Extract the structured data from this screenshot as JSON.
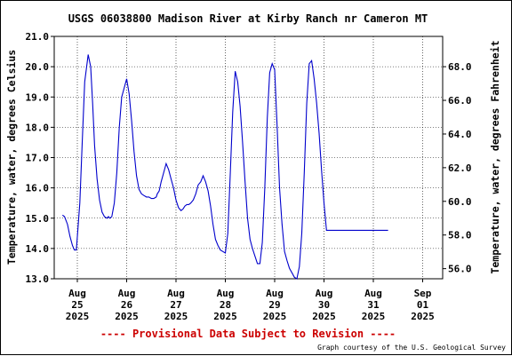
{
  "chart_data": {
    "type": "line",
    "title": "USGS 06038800 Madison River at Kirby Ranch nr Cameron MT",
    "ylabel": "Temperature, water, degrees Celsius",
    "y2label": "Temperature, water, degrees Fahrenheit",
    "ylim": [
      13.0,
      21.0
    ],
    "y2lim": [
      55.4,
      69.8
    ],
    "y_ticks": [
      "21.0",
      "20.0",
      "19.0",
      "18.0",
      "17.0",
      "16.0",
      "15.0",
      "14.0",
      "13.0"
    ],
    "y2_ticks": [
      "68.0",
      "66.0",
      "64.0",
      "62.0",
      "60.0",
      "58.0",
      "56.0"
    ],
    "x_ticks": [
      [
        "Aug",
        "25",
        "2025"
      ],
      [
        "Aug",
        "26",
        "2025"
      ],
      [
        "Aug",
        "27",
        "2025"
      ],
      [
        "Aug",
        "28",
        "2025"
      ],
      [
        "Aug",
        "29",
        "2025"
      ],
      [
        "Aug",
        "30",
        "2025"
      ],
      [
        "Aug",
        "31",
        "2025"
      ],
      [
        "Sep",
        "01",
        "2025"
      ]
    ],
    "x_range": [
      "2025-08-25 00:00",
      "2025-09-01 00:00"
    ],
    "grid": true,
    "line_color": "#0000cc",
    "series_x_unit": "day of series (0 = Aug 25 00:00)",
    "series": [
      {
        "x": [
          -0.3,
          -0.26,
          -0.2,
          -0.15,
          -0.1,
          -0.06,
          -0.02,
          0.05,
          0.1,
          0.15,
          0.22,
          0.27,
          0.31,
          0.35,
          0.4,
          0.45,
          0.5,
          0.55,
          0.6,
          0.63,
          0.66,
          0.7,
          0.75,
          0.8,
          0.85,
          0.9,
          1.0,
          1.05,
          1.1,
          1.15,
          1.2,
          1.25,
          1.3,
          1.35,
          1.4,
          1.45,
          1.5,
          1.55,
          1.6,
          1.62,
          1.66,
          1.7,
          1.75,
          1.8,
          1.85,
          1.9,
          1.95,
          2.0,
          2.05,
          2.1,
          2.14,
          2.18,
          2.22,
          2.26,
          2.3,
          2.35,
          2.4,
          2.45,
          2.5,
          2.55,
          2.6,
          2.65,
          2.7,
          2.75,
          2.8,
          2.85,
          2.9,
          2.95,
          3.0,
          3.05,
          3.1,
          3.15,
          3.2,
          3.25,
          3.3,
          3.35,
          3.4,
          3.45,
          3.5,
          3.55,
          3.6,
          3.65,
          3.7,
          3.75,
          3.8,
          3.85,
          3.9,
          3.95,
          4.0,
          4.05,
          4.1,
          4.15,
          4.2,
          4.25,
          4.3,
          4.35,
          4.4,
          4.45,
          4.5,
          4.55,
          4.6,
          4.65,
          4.7,
          4.75,
          4.8,
          4.85,
          4.9,
          4.95,
          5.0,
          5.05,
          5.1,
          5.15,
          5.2,
          5.25,
          5.3,
          5.35,
          5.4,
          5.45,
          5.5,
          5.55,
          5.6,
          5.65,
          5.7,
          5.75,
          5.8,
          5.85,
          5.9,
          5.95,
          6.0,
          6.05,
          6.1,
          6.15,
          6.2,
          6.25,
          6.3,
          6.35,
          6.4,
          6.45,
          6.5,
          6.55,
          6.6,
          6.65,
          6.7
        ],
        "values": [
          15.1,
          15.05,
          14.8,
          14.4,
          14.1,
          13.95,
          13.95,
          15.5,
          17.5,
          19.5,
          20.4,
          20.0,
          18.8,
          17.4,
          16.3,
          15.6,
          15.2,
          15.05,
          15.0,
          15.05,
          15.0,
          15.05,
          15.5,
          16.5,
          18.0,
          19.0,
          19.6,
          19.1,
          18.2,
          17.2,
          16.4,
          15.95,
          15.8,
          15.75,
          15.7,
          15.7,
          15.65,
          15.65,
          15.7,
          15.8,
          15.9,
          16.2,
          16.5,
          16.8,
          16.6,
          16.3,
          16.0,
          15.6,
          15.35,
          15.25,
          15.3,
          15.4,
          15.45,
          15.45,
          15.5,
          15.6,
          15.8,
          16.1,
          16.2,
          16.4,
          16.2,
          15.9,
          15.4,
          14.8,
          14.3,
          14.1,
          13.95,
          13.9,
          13.85,
          14.5,
          16.5,
          18.5,
          19.85,
          19.5,
          18.7,
          17.5,
          16.2,
          15.0,
          14.3,
          14.0,
          13.75,
          13.5,
          13.5,
          14.2,
          16.0,
          18.3,
          19.8,
          20.1,
          19.9,
          18.0,
          16.0,
          14.8,
          13.9,
          13.6,
          13.35,
          13.2,
          13.05,
          13.0,
          13.4,
          14.5,
          16.5,
          18.8,
          20.1,
          20.2,
          19.6,
          18.8,
          17.8,
          16.6,
          15.5,
          14.6,
          14.6,
          14.6,
          14.6,
          14.6,
          14.6,
          14.6,
          14.6,
          14.6,
          14.6,
          14.6,
          14.6,
          14.6,
          14.6,
          14.6,
          14.6,
          14.6,
          14.6,
          14.6,
          14.6,
          14.6,
          14.6,
          14.6,
          14.6,
          14.6,
          14.6,
          14.6,
          14.6,
          14.6,
          14.6,
          14.6,
          14.6,
          14.6,
          14.6
        ]
      }
    ]
  },
  "footer": {
    "provisional": "---- Provisional Data Subject to Revision ----",
    "courtesy": "Graph courtesy of the U.S. Geological Survey"
  },
  "colors": {
    "line": "#0000cc",
    "provisional": "#cc0000",
    "grid": "#000000"
  }
}
